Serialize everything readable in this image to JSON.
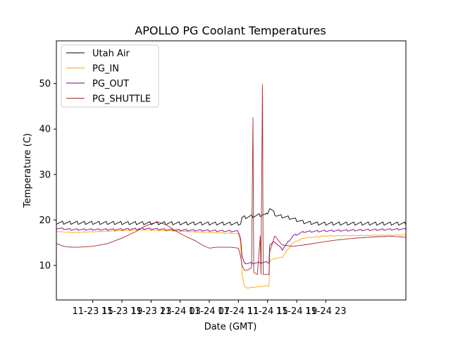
{
  "chart_data": {
    "type": "line",
    "title": "APOLLO PG Coolant Temperatures",
    "xlabel": "Date (GMT)",
    "ylabel": "Temperature (C)",
    "xlim": [
      12,
      60
    ],
    "ylim": [
      2.4,
      59.4
    ],
    "x_ticks": [
      {
        "value": 17,
        "label": "11-23 15"
      },
      {
        "value": 21,
        "label": "11-23 19"
      },
      {
        "value": 25,
        "label": "11-23 23"
      },
      {
        "value": 29,
        "label": "11-24 03"
      },
      {
        "value": 33,
        "label": "11-24 07"
      },
      {
        "value": 37,
        "label": "11-24 11"
      },
      {
        "value": 41,
        "label": "11-24 15"
      },
      {
        "value": 45,
        "label": "11-24 19"
      },
      {
        "value": 49,
        "label": "11-24 23"
      }
    ],
    "y_ticks": [
      {
        "value": 10,
        "label": "10"
      },
      {
        "value": 20,
        "label": "20"
      },
      {
        "value": 30,
        "label": "30"
      },
      {
        "value": 40,
        "label": "40"
      },
      {
        "value": 50,
        "label": "50"
      }
    ],
    "legend_position": "top-left",
    "series": [
      {
        "name": "Utah Air",
        "color": "#000000",
        "points": [
          [
            12,
            19.4
          ],
          [
            37.3,
            19.2
          ],
          [
            37.5,
            20.5
          ],
          [
            40.5,
            21.2
          ],
          [
            40.8,
            21.0
          ],
          [
            41.3,
            22.6
          ],
          [
            42.2,
            21.0
          ],
          [
            44,
            20.5
          ],
          [
            46,
            19.5
          ],
          [
            48,
            19.2
          ],
          [
            60,
            19.2
          ]
        ],
        "oscillation": 0.7
      },
      {
        "name": "PG_IN",
        "color": "#ffa500",
        "points": [
          [
            12,
            17.5
          ],
          [
            14,
            17.2
          ],
          [
            17,
            17.4
          ],
          [
            20,
            17.6
          ],
          [
            24,
            17.8
          ],
          [
            26,
            17.7
          ],
          [
            28,
            17.6
          ],
          [
            32,
            17.3
          ],
          [
            37.0,
            17.0
          ],
          [
            37.3,
            15.0
          ],
          [
            37.5,
            8.0
          ],
          [
            37.8,
            5.5
          ],
          [
            38.3,
            5.0
          ],
          [
            39,
            5.2
          ],
          [
            40.8,
            5.5
          ],
          [
            41.2,
            5.5
          ],
          [
            41.3,
            11.0
          ],
          [
            42,
            11.5
          ],
          [
            43.0,
            11.8
          ],
          [
            44.5,
            15.0
          ],
          [
            46,
            16.0
          ],
          [
            49,
            16.5
          ],
          [
            60,
            16.7
          ]
        ],
        "oscillation": 0.15
      },
      {
        "name": "PG_OUT",
        "color": "#800080",
        "points": [
          [
            12,
            18.2
          ],
          [
            14,
            17.9
          ],
          [
            17,
            17.9
          ],
          [
            20,
            17.9
          ],
          [
            24,
            18.1
          ],
          [
            26,
            18.0
          ],
          [
            28,
            17.8
          ],
          [
            32,
            17.7
          ],
          [
            37.0,
            17.5
          ],
          [
            37.3,
            16.0
          ],
          [
            37.5,
            12.0
          ],
          [
            37.8,
            10.5
          ],
          [
            38.3,
            10.5
          ],
          [
            39,
            10.5
          ],
          [
            40.8,
            10.7
          ],
          [
            41.2,
            10.7
          ],
          [
            41.3,
            14.5
          ],
          [
            42,
            15.2
          ],
          [
            43.0,
            13.5
          ],
          [
            44.5,
            16.5
          ],
          [
            46,
            17.4
          ],
          [
            49,
            17.6
          ],
          [
            60,
            18.0
          ]
        ],
        "oscillation": 0.35
      },
      {
        "name": "PG_SHUTTLE",
        "color": "#a52a2a",
        "points": [
          [
            12,
            14.8
          ],
          [
            13,
            14.2
          ],
          [
            14,
            14.0
          ],
          [
            15,
            14.0
          ],
          [
            17,
            14.2
          ],
          [
            19,
            14.8
          ],
          [
            21,
            16.0
          ],
          [
            23,
            17.5
          ],
          [
            24,
            18.5
          ],
          [
            25,
            19.2
          ],
          [
            26,
            19.5
          ],
          [
            27,
            19.0
          ],
          [
            28,
            18.0
          ],
          [
            29,
            17.0
          ],
          [
            30,
            16.2
          ],
          [
            31,
            15.5
          ],
          [
            32,
            14.5
          ],
          [
            33,
            13.8
          ],
          [
            34,
            14.0
          ],
          [
            35,
            14.0
          ],
          [
            36,
            14.0
          ],
          [
            37.0,
            13.8
          ],
          [
            37.3,
            12.0
          ],
          [
            37.5,
            10.0
          ],
          [
            37.8,
            9.0
          ],
          [
            38.3,
            9.0
          ],
          [
            38.8,
            9.5
          ],
          [
            39.0,
            42.5
          ],
          [
            39.1,
            8.5
          ],
          [
            39.6,
            8.0
          ],
          [
            40.0,
            16.5
          ],
          [
            40.1,
            8.0
          ],
          [
            40.3,
            49.8
          ],
          [
            40.4,
            8.0
          ],
          [
            40.8,
            8.0
          ],
          [
            41.2,
            8.0
          ],
          [
            41.3,
            13.0
          ],
          [
            42,
            16.5
          ],
          [
            43.0,
            14.5
          ],
          [
            44.5,
            14.2
          ],
          [
            46,
            14.5
          ],
          [
            48,
            15.0
          ],
          [
            50,
            15.5
          ],
          [
            53,
            16.0
          ],
          [
            56,
            16.3
          ],
          [
            58,
            16.4
          ],
          [
            60,
            16.2
          ]
        ],
        "oscillation": 0.0
      }
    ]
  }
}
